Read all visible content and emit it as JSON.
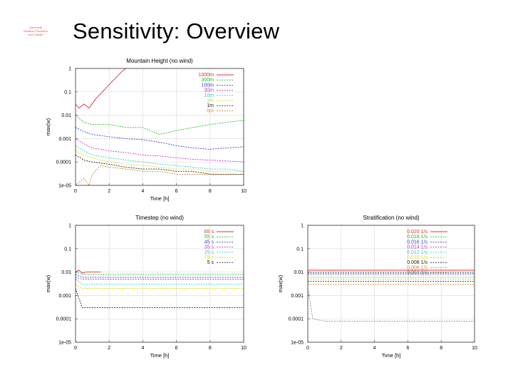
{
  "slide": {
    "title": "Sensitivity: Overview",
    "logo_lines": [
      "Numerical",
      "Weather Prediction",
      "and Climate"
    ]
  },
  "chart_data": [
    {
      "type": "line",
      "title": "Mountain Height (no wind)",
      "xlabel": "Time [h]",
      "ylabel": "max(w)",
      "yscale": "log",
      "xlim": [
        0,
        10
      ],
      "ylim": [
        1e-05,
        1
      ],
      "xticks": [
        0,
        2,
        4,
        6,
        8,
        10
      ],
      "yticks": [
        1,
        0.1,
        0.01,
        0.001,
        0.0001,
        1e-05
      ],
      "ytick_labels": [
        "1",
        "0.1",
        "0.01",
        "0.001",
        "0.0001",
        "1e-05"
      ],
      "grid": true,
      "legend_position": "top-right",
      "series": [
        {
          "name": "1000m",
          "color": "#e03030",
          "x": [
            0.0,
            0.2,
            0.5,
            0.8,
            1.2,
            1.6,
            2.0,
            2.4,
            2.8,
            3.0
          ],
          "y": [
            0.03,
            0.02,
            0.03,
            0.02,
            0.05,
            0.1,
            0.2,
            0.4,
            0.8,
            1.0
          ]
        },
        {
          "name": "300m",
          "color": "#22bb22",
          "x": [
            0.0,
            0.5,
            1.0,
            2.0,
            3.0,
            4.0,
            5.0,
            6.0,
            7.0,
            8.0,
            9.0,
            10.0
          ],
          "y": [
            0.01,
            0.005,
            0.004,
            0.004,
            0.003,
            0.003,
            0.0015,
            0.0022,
            0.003,
            0.004,
            0.005,
            0.006
          ]
        },
        {
          "name": "100m",
          "color": "#3344cc",
          "x": [
            0.0,
            0.5,
            1.0,
            2.0,
            3.0,
            4.0,
            5.0,
            6.0,
            7.0,
            8.0,
            9.0,
            10.0
          ],
          "y": [
            0.003,
            0.002,
            0.0015,
            0.0012,
            0.001,
            0.0009,
            0.0007,
            0.0005,
            0.0004,
            0.00035,
            0.0004,
            0.00045
          ]
        },
        {
          "name": "30m",
          "color": "#cc33cc",
          "x": [
            0.0,
            0.5,
            1.0,
            2.0,
            3.0,
            4.0,
            5.0,
            6.0,
            7.0,
            8.0,
            9.0,
            10.0
          ],
          "y": [
            0.001,
            0.0006,
            0.0004,
            0.0003,
            0.00025,
            0.0002,
            0.00018,
            0.00015,
            0.00013,
            0.00012,
            0.00011,
            0.0001
          ]
        },
        {
          "name": "10m",
          "color": "#33cccc",
          "x": [
            0.0,
            0.5,
            1.0,
            2.0,
            3.0,
            4.0,
            5.0,
            6.0,
            7.0,
            8.0,
            9.0,
            10.0
          ],
          "y": [
            0.0005,
            0.0003,
            0.0002,
            0.00015,
            0.00012,
            0.0001,
            8e-05,
            7e-05,
            6e-05,
            5e-05,
            5e-05,
            4e-05
          ]
        },
        {
          "name": "3m",
          "color": "#dddd22",
          "x": [
            0.0,
            0.5,
            1.0,
            2.0,
            3.0,
            4.0,
            5.0,
            6.0,
            7.0,
            8.0,
            9.0,
            10.0
          ],
          "y": [
            0.0003,
            0.0002,
            0.00015,
            0.0001,
            8e-05,
            7e-05,
            6e-05,
            5e-05,
            5e-05,
            4e-05,
            4e-05,
            4e-05
          ]
        },
        {
          "name": "1m",
          "color": "#222222",
          "x": [
            0.0,
            0.5,
            1.0,
            2.0,
            3.0,
            4.0,
            5.0,
            6.0,
            7.0,
            8.0,
            9.0,
            10.0
          ],
          "y": [
            0.0002,
            0.00012,
            0.0001,
            8e-05,
            6e-05,
            5e-05,
            5e-05,
            4e-05,
            4e-05,
            3e-05,
            3e-05,
            3e-05
          ]
        },
        {
          "name": "0m",
          "color": "#cc8833",
          "x": [
            0.0,
            0.5,
            0.8,
            1.0,
            1.5,
            2.0,
            3.0,
            4.0,
            5.0,
            6.0,
            7.0,
            8.0,
            9.0,
            10.0
          ],
          "y": [
            1e-05,
            2e-05,
            1e-05,
            3e-05,
            7e-05,
            6e-05,
            5e-05,
            4e-05,
            4e-05,
            3e-05,
            3e-05,
            3e-05,
            3e-05,
            3e-05
          ]
        }
      ]
    },
    {
      "type": "line",
      "title": "Timestep (no wind)",
      "xlabel": "Time [h]",
      "ylabel": "max(w)",
      "yscale": "log",
      "xlim": [
        0,
        10
      ],
      "ylim": [
        1e-05,
        1
      ],
      "xticks": [
        0,
        2,
        4,
        6,
        8,
        10
      ],
      "yticks": [
        1,
        0.1,
        0.01,
        0.001,
        0.0001,
        1e-05
      ],
      "ytick_labels": [
        "1",
        "0.1",
        "0.01",
        "0.001",
        "0.0001",
        "1e-05"
      ],
      "grid": true,
      "legend_position": "top-right",
      "series": [
        {
          "name": "65 s",
          "color": "#e03030",
          "x": [
            0.0,
            0.2,
            0.4,
            0.6,
            1.0,
            1.5
          ],
          "y": [
            0.01,
            0.012,
            0.009,
            0.01,
            0.01,
            0.01
          ]
        },
        {
          "name": "55 s",
          "color": "#22bb22",
          "x": [
            0.0,
            0.4,
            1.0,
            2.0,
            4.0,
            6.0,
            8.0,
            10.0
          ],
          "y": [
            0.01,
            0.008,
            0.008,
            0.008,
            0.008,
            0.008,
            0.008,
            0.008
          ]
        },
        {
          "name": "45 s",
          "color": "#3344cc",
          "x": [
            0.0,
            0.4,
            1.0,
            2.0,
            4.0,
            6.0,
            8.0,
            10.0
          ],
          "y": [
            0.008,
            0.006,
            0.006,
            0.006,
            0.006,
            0.006,
            0.006,
            0.006
          ]
        },
        {
          "name": "35 s",
          "color": "#cc33cc",
          "x": [
            0.0,
            0.4,
            1.0,
            2.0,
            4.0,
            6.0,
            8.0,
            10.0
          ],
          "y": [
            0.006,
            0.005,
            0.005,
            0.005,
            0.005,
            0.005,
            0.005,
            0.005
          ]
        },
        {
          "name": "25 s",
          "color": "#33cccc",
          "x": [
            0.0,
            0.4,
            1.0,
            2.0,
            4.0,
            6.0,
            8.0,
            10.0
          ],
          "y": [
            0.005,
            0.003,
            0.003,
            0.003,
            0.003,
            0.003,
            0.003,
            0.003
          ]
        },
        {
          "name": "15 s",
          "color": "#dddd22",
          "x": [
            0.0,
            0.4,
            1.0,
            2.0,
            4.0,
            6.0,
            8.0,
            10.0
          ],
          "y": [
            0.003,
            0.002,
            0.002,
            0.002,
            0.002,
            0.002,
            0.002,
            0.002
          ]
        },
        {
          "name": "5 s",
          "color": "#222222",
          "x": [
            0.0,
            0.4,
            1.0,
            2.0,
            4.0,
            6.0,
            8.0,
            10.0
          ],
          "y": [
            0.002,
            0.0003,
            0.0003,
            0.0003,
            0.0003,
            0.0003,
            0.0003,
            0.0003
          ]
        }
      ]
    },
    {
      "type": "line",
      "title": "Stratification (no wind)",
      "xlabel": "Time [h]",
      "ylabel": "max(w)",
      "yscale": "log",
      "xlim": [
        0,
        10
      ],
      "ylim": [
        1e-05,
        1
      ],
      "xticks": [
        0,
        2,
        4,
        6,
        8,
        10
      ],
      "yticks": [
        1,
        0.1,
        0.01,
        0.001,
        0.0001,
        1e-05
      ],
      "ytick_labels": [
        "1",
        "0.1",
        "0.01",
        "0.001",
        "0.0001",
        "1e-05"
      ],
      "grid": true,
      "legend_position": "top-right",
      "series": [
        {
          "name": "0.020 1/s",
          "color": "#e03030",
          "x": [
            0.0,
            0.3,
            1.0,
            2.0,
            4.0,
            6.0,
            8.0,
            10.0
          ],
          "y": [
            0.012,
            0.012,
            0.012,
            0.012,
            0.012,
            0.012,
            0.012,
            0.012
          ]
        },
        {
          "name": "0.018 1/s",
          "color": "#22bb22",
          "x": [
            0.0,
            0.3,
            1.0,
            2.0,
            4.0,
            6.0,
            8.0,
            10.0
          ],
          "y": [
            0.01,
            0.01,
            0.01,
            0.01,
            0.01,
            0.01,
            0.01,
            0.01
          ]
        },
        {
          "name": "0.016 1/s",
          "color": "#3344cc",
          "x": [
            0.0,
            0.3,
            1.0,
            2.0,
            4.0,
            6.0,
            8.0,
            10.0
          ],
          "y": [
            0.009,
            0.009,
            0.009,
            0.009,
            0.009,
            0.009,
            0.009,
            0.009
          ]
        },
        {
          "name": "0.014 1/s",
          "color": "#cc33cc",
          "x": [
            0.0,
            0.3,
            1.0,
            2.0,
            4.0,
            6.0,
            8.0,
            10.0
          ],
          "y": [
            0.008,
            0.008,
            0.008,
            0.008,
            0.008,
            0.008,
            0.008,
            0.008
          ]
        },
        {
          "name": "0.012 1/s",
          "color": "#33cccc",
          "x": [
            0.0,
            0.3,
            1.0,
            2.0,
            4.0,
            6.0,
            8.0,
            10.0
          ],
          "y": [
            0.006,
            0.006,
            0.006,
            0.006,
            0.006,
            0.006,
            0.006,
            0.006
          ]
        },
        {
          "name": "0.010 1/s",
          "color": "#dddd22",
          "x": [
            0.0,
            0.3,
            1.0,
            2.0,
            4.0,
            6.0,
            8.0,
            10.0
          ],
          "y": [
            0.005,
            0.005,
            0.005,
            0.005,
            0.005,
            0.005,
            0.005,
            0.005
          ]
        },
        {
          "name": "0.008 1/s",
          "color": "#222222",
          "x": [
            0.0,
            0.3,
            1.0,
            2.0,
            4.0,
            6.0,
            8.0,
            10.0
          ],
          "y": [
            0.004,
            0.004,
            0.004,
            0.004,
            0.004,
            0.004,
            0.004,
            0.004
          ]
        },
        {
          "name": "0.006 1/s",
          "color": "#cc8833",
          "x": [
            0.0,
            0.3,
            1.0,
            2.0,
            4.0,
            6.0,
            8.0,
            10.0
          ],
          "y": [
            0.003,
            0.003,
            0.003,
            0.003,
            0.003,
            0.003,
            0.003,
            0.003
          ]
        },
        {
          "name": "0.004 1/s",
          "color": "#888888",
          "x": [
            0.0,
            0.3,
            1.0,
            2.0,
            4.0,
            6.0,
            8.0,
            10.0
          ],
          "y": [
            0.002,
            0.0001,
            8e-05,
            8e-05,
            8e-05,
            8e-05,
            8e-05,
            8e-05
          ]
        }
      ]
    }
  ]
}
